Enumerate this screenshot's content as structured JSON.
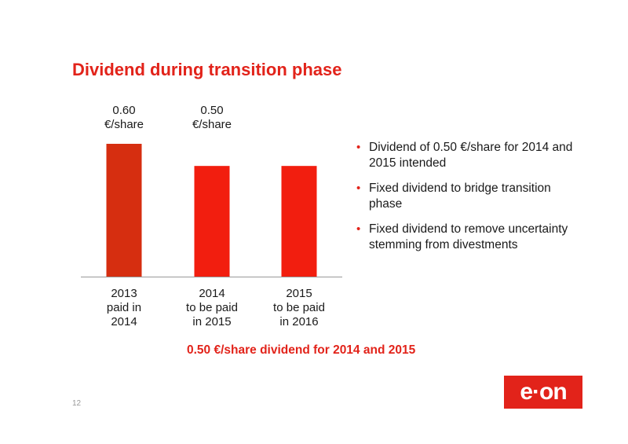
{
  "title": "Dividend during transition phase",
  "chart_data": {
    "type": "bar",
    "categories": [
      [
        "2013",
        "paid in",
        "2014"
      ],
      [
        "2014",
        "to be paid",
        "in 2015"
      ],
      [
        "2015",
        "to be paid",
        "in 2016"
      ]
    ],
    "values": [
      0.6,
      0.5,
      0.5
    ],
    "colors": [
      "#d62e10",
      "#f21e0f",
      "#f21e0f"
    ],
    "value_labels": [
      [
        "0.60",
        "€/share"
      ],
      [
        "0.50",
        "€/share"
      ]
    ],
    "ylim": [
      0,
      0.6
    ],
    "grid": false
  },
  "bullets": [
    "Dividend of 0.50 €/share for 2014 and 2015 intended",
    "Fixed dividend to bridge transition phase",
    "Fixed dividend to remove uncertainty stemming from divestments"
  ],
  "conclusion": "0.50 €/share dividend for 2014 and 2015",
  "page_number": "12",
  "logo": {
    "text": "e·on",
    "color": "#e2231a"
  }
}
